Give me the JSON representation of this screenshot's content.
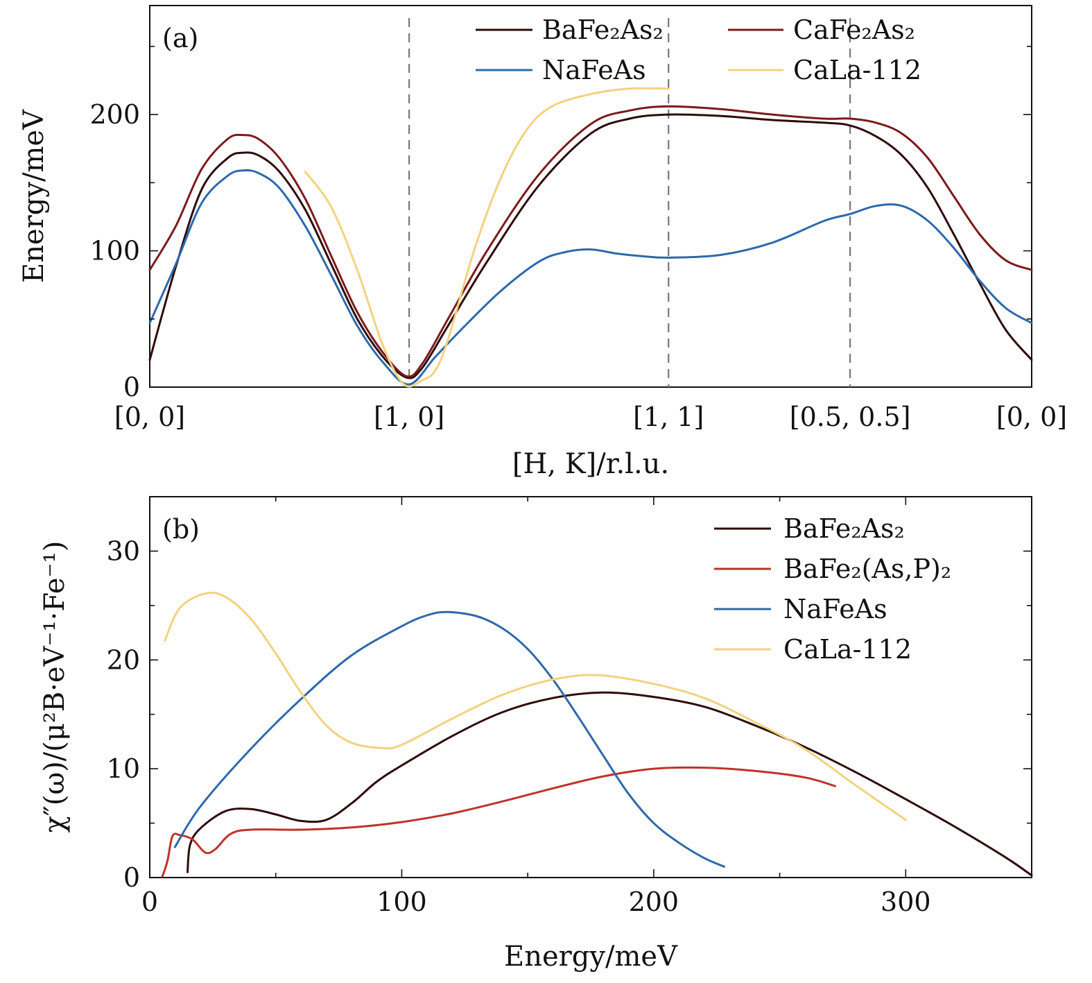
{
  "chart_data": [
    {
      "type": "line",
      "panel": "(a)",
      "xlabel": "[H, K]/r.l.u.",
      "ylabel": "Energy/meV",
      "ylim": [
        0,
        280
      ],
      "yticks": [
        0,
        100,
        200
      ],
      "x_path_labels": [
        "[0, 0]",
        "[1, 0]",
        "[1, 1]",
        "[0.5, 0.5]",
        "[0, 0]"
      ],
      "x_path_positions": [
        0,
        1,
        2,
        2.7,
        3.4
      ],
      "xlim": [
        0,
        3.4
      ],
      "dashed_vlines": [
        1,
        2,
        2.7
      ],
      "legend": {
        "position": "top-right",
        "columns": 2
      },
      "series": [
        {
          "name": "BaFe₂As₂",
          "color": "#2e0a0a",
          "points": [
            [
              0,
              20
            ],
            [
              0.1,
              88
            ],
            [
              0.2,
              145
            ],
            [
              0.3,
              168
            ],
            [
              0.36,
              172
            ],
            [
              0.42,
              170
            ],
            [
              0.5,
              158
            ],
            [
              0.6,
              130
            ],
            [
              0.7,
              90
            ],
            [
              0.8,
              50
            ],
            [
              0.9,
              22
            ],
            [
              0.99,
              7
            ],
            [
              1.05,
              14
            ],
            [
              1.15,
              45
            ],
            [
              1.3,
              92
            ],
            [
              1.5,
              148
            ],
            [
              1.7,
              186
            ],
            [
              1.85,
              197
            ],
            [
              2.0,
              200
            ],
            [
              2.2,
              199
            ],
            [
              2.4,
              196
            ],
            [
              2.6,
              194
            ],
            [
              2.7,
              192
            ],
            [
              2.8,
              184
            ],
            [
              2.9,
              170
            ],
            [
              3.0,
              146
            ],
            [
              3.1,
              112
            ],
            [
              3.2,
              76
            ],
            [
              3.3,
              42
            ],
            [
              3.4,
              20
            ]
          ]
        },
        {
          "name": "CaFe₂As₂",
          "color": "#7b1a1c",
          "points": [
            [
              0,
              86
            ],
            [
              0.1,
              118
            ],
            [
              0.2,
              160
            ],
            [
              0.3,
              182
            ],
            [
              0.36,
              185
            ],
            [
              0.42,
              182
            ],
            [
              0.5,
              168
            ],
            [
              0.6,
              138
            ],
            [
              0.7,
              96
            ],
            [
              0.8,
              55
            ],
            [
              0.9,
              25
            ],
            [
              0.99,
              8
            ],
            [
              1.05,
              17
            ],
            [
              1.15,
              50
            ],
            [
              1.3,
              100
            ],
            [
              1.5,
              156
            ],
            [
              1.7,
              193
            ],
            [
              1.85,
              203
            ],
            [
              2.0,
              206
            ],
            [
              2.2,
              204
            ],
            [
              2.4,
              200
            ],
            [
              2.6,
              197
            ],
            [
              2.7,
              197
            ],
            [
              2.8,
              194
            ],
            [
              2.9,
              186
            ],
            [
              3.0,
              168
            ],
            [
              3.1,
              140
            ],
            [
              3.2,
              112
            ],
            [
              3.3,
              93
            ],
            [
              3.4,
              86
            ]
          ]
        },
        {
          "name": "NaFeAs",
          "color": "#2d69aa",
          "points": [
            [
              0,
              47
            ],
            [
              0.1,
              90
            ],
            [
              0.2,
              135
            ],
            [
              0.3,
              155
            ],
            [
              0.36,
              159
            ],
            [
              0.42,
              157
            ],
            [
              0.5,
              146
            ],
            [
              0.6,
              118
            ],
            [
              0.7,
              82
            ],
            [
              0.8,
              45
            ],
            [
              0.9,
              18
            ],
            [
              1.0,
              2
            ],
            [
              1.1,
              22
            ],
            [
              1.2,
              42
            ],
            [
              1.35,
              70
            ],
            [
              1.5,
              92
            ],
            [
              1.6,
              99
            ],
            [
              1.7,
              101
            ],
            [
              1.8,
              98
            ],
            [
              1.9,
              96
            ],
            [
              2.0,
              95
            ],
            [
              2.2,
              97
            ],
            [
              2.4,
              106
            ],
            [
              2.6,
              122
            ],
            [
              2.7,
              127
            ],
            [
              2.8,
              133
            ],
            [
              2.9,
              133
            ],
            [
              3.0,
              122
            ],
            [
              3.1,
              102
            ],
            [
              3.2,
              78
            ],
            [
              3.3,
              58
            ],
            [
              3.4,
              47
            ]
          ]
        },
        {
          "name": "CaLa-112",
          "color": "#f3d27f",
          "points": [
            [
              0.6,
              158
            ],
            [
              0.7,
              132
            ],
            [
              0.8,
              86
            ],
            [
              0.9,
              30
            ],
            [
              0.98,
              2
            ],
            [
              1.05,
              5
            ],
            [
              1.1,
              12
            ],
            [
              1.15,
              35
            ],
            [
              1.25,
              100
            ],
            [
              1.35,
              152
            ],
            [
              1.45,
              188
            ],
            [
              1.55,
              206
            ],
            [
              1.7,
              215
            ],
            [
              1.85,
              219
            ],
            [
              2.0,
              219
            ]
          ]
        }
      ]
    },
    {
      "type": "line",
      "panel": "(b)",
      "xlabel": "Energy/meV",
      "ylabel": "χ″(ω)/(μ²B·eV⁻¹·Fe⁻¹)",
      "xlim": [
        0,
        350
      ],
      "ylim": [
        0,
        35
      ],
      "xticks": [
        0,
        100,
        200,
        300
      ],
      "yticks": [
        0,
        10,
        20,
        30
      ],
      "legend": {
        "position": "top-right",
        "columns": 1
      },
      "series": [
        {
          "name": "BaFe₂As₂",
          "color": "#2e0a0a",
          "points": [
            [
              15,
              0.5
            ],
            [
              16,
              3.0
            ],
            [
              20,
              4.5
            ],
            [
              30,
              6.1
            ],
            [
              40,
              6.3
            ],
            [
              50,
              5.8
            ],
            [
              60,
              5.2
            ],
            [
              70,
              5.3
            ],
            [
              80,
              6.8
            ],
            [
              90,
              8.8
            ],
            [
              100,
              10.3
            ],
            [
              120,
              13.0
            ],
            [
              140,
              15.2
            ],
            [
              160,
              16.5
            ],
            [
              180,
              17.0
            ],
            [
              200,
              16.6
            ],
            [
              220,
              15.7
            ],
            [
              240,
              14.0
            ],
            [
              260,
              12.0
            ],
            [
              280,
              9.7
            ],
            [
              300,
              7.2
            ],
            [
              320,
              4.6
            ],
            [
              340,
              1.8
            ],
            [
              350,
              0.2
            ]
          ]
        },
        {
          "name": "BaFe₂(As,P)₂",
          "color": "#c0322a",
          "points": [
            [
              5,
              0.1
            ],
            [
              7,
              1.5
            ],
            [
              9,
              3.8
            ],
            [
              12,
              3.9
            ],
            [
              17,
              3.5
            ],
            [
              22,
              2.3
            ],
            [
              26,
              2.6
            ],
            [
              32,
              4.0
            ],
            [
              40,
              4.4
            ],
            [
              60,
              4.4
            ],
            [
              80,
              4.6
            ],
            [
              100,
              5.1
            ],
            [
              120,
              5.9
            ],
            [
              140,
              7.0
            ],
            [
              160,
              8.2
            ],
            [
              180,
              9.3
            ],
            [
              200,
              10.0
            ],
            [
              220,
              10.1
            ],
            [
              240,
              9.8
            ],
            [
              260,
              9.2
            ],
            [
              272,
              8.4
            ]
          ]
        },
        {
          "name": "NaFeAs",
          "color": "#2d69aa",
          "points": [
            [
              10,
              2.8
            ],
            [
              20,
              6.5
            ],
            [
              40,
              11.8
            ],
            [
              60,
              16.4
            ],
            [
              80,
              20.4
            ],
            [
              100,
              23.1
            ],
            [
              110,
              24.1
            ],
            [
              118,
              24.4
            ],
            [
              130,
              24.0
            ],
            [
              140,
              22.9
            ],
            [
              150,
              21.0
            ],
            [
              160,
              18.2
            ],
            [
              170,
              14.8
            ],
            [
              180,
              11.2
            ],
            [
              190,
              7.7
            ],
            [
              200,
              5.0
            ],
            [
              210,
              3.2
            ],
            [
              220,
              1.8
            ],
            [
              228,
              1.0
            ]
          ]
        },
        {
          "name": "CaLa-112",
          "color": "#f3d27f",
          "points": [
            [
              6,
              21.8
            ],
            [
              12,
              24.8
            ],
            [
              22,
              26.1
            ],
            [
              30,
              25.8
            ],
            [
              40,
              23.8
            ],
            [
              50,
              20.6
            ],
            [
              60,
              17.0
            ],
            [
              70,
              14.0
            ],
            [
              80,
              12.4
            ],
            [
              92,
              11.9
            ],
            [
              100,
              12.2
            ],
            [
              120,
              14.6
            ],
            [
              140,
              16.8
            ],
            [
              160,
              18.2
            ],
            [
              178,
              18.6
            ],
            [
              200,
              17.8
            ],
            [
              220,
              16.5
            ],
            [
              240,
              14.3
            ],
            [
              260,
              11.8
            ],
            [
              280,
              8.5
            ],
            [
              300,
              5.3
            ]
          ]
        }
      ]
    }
  ]
}
